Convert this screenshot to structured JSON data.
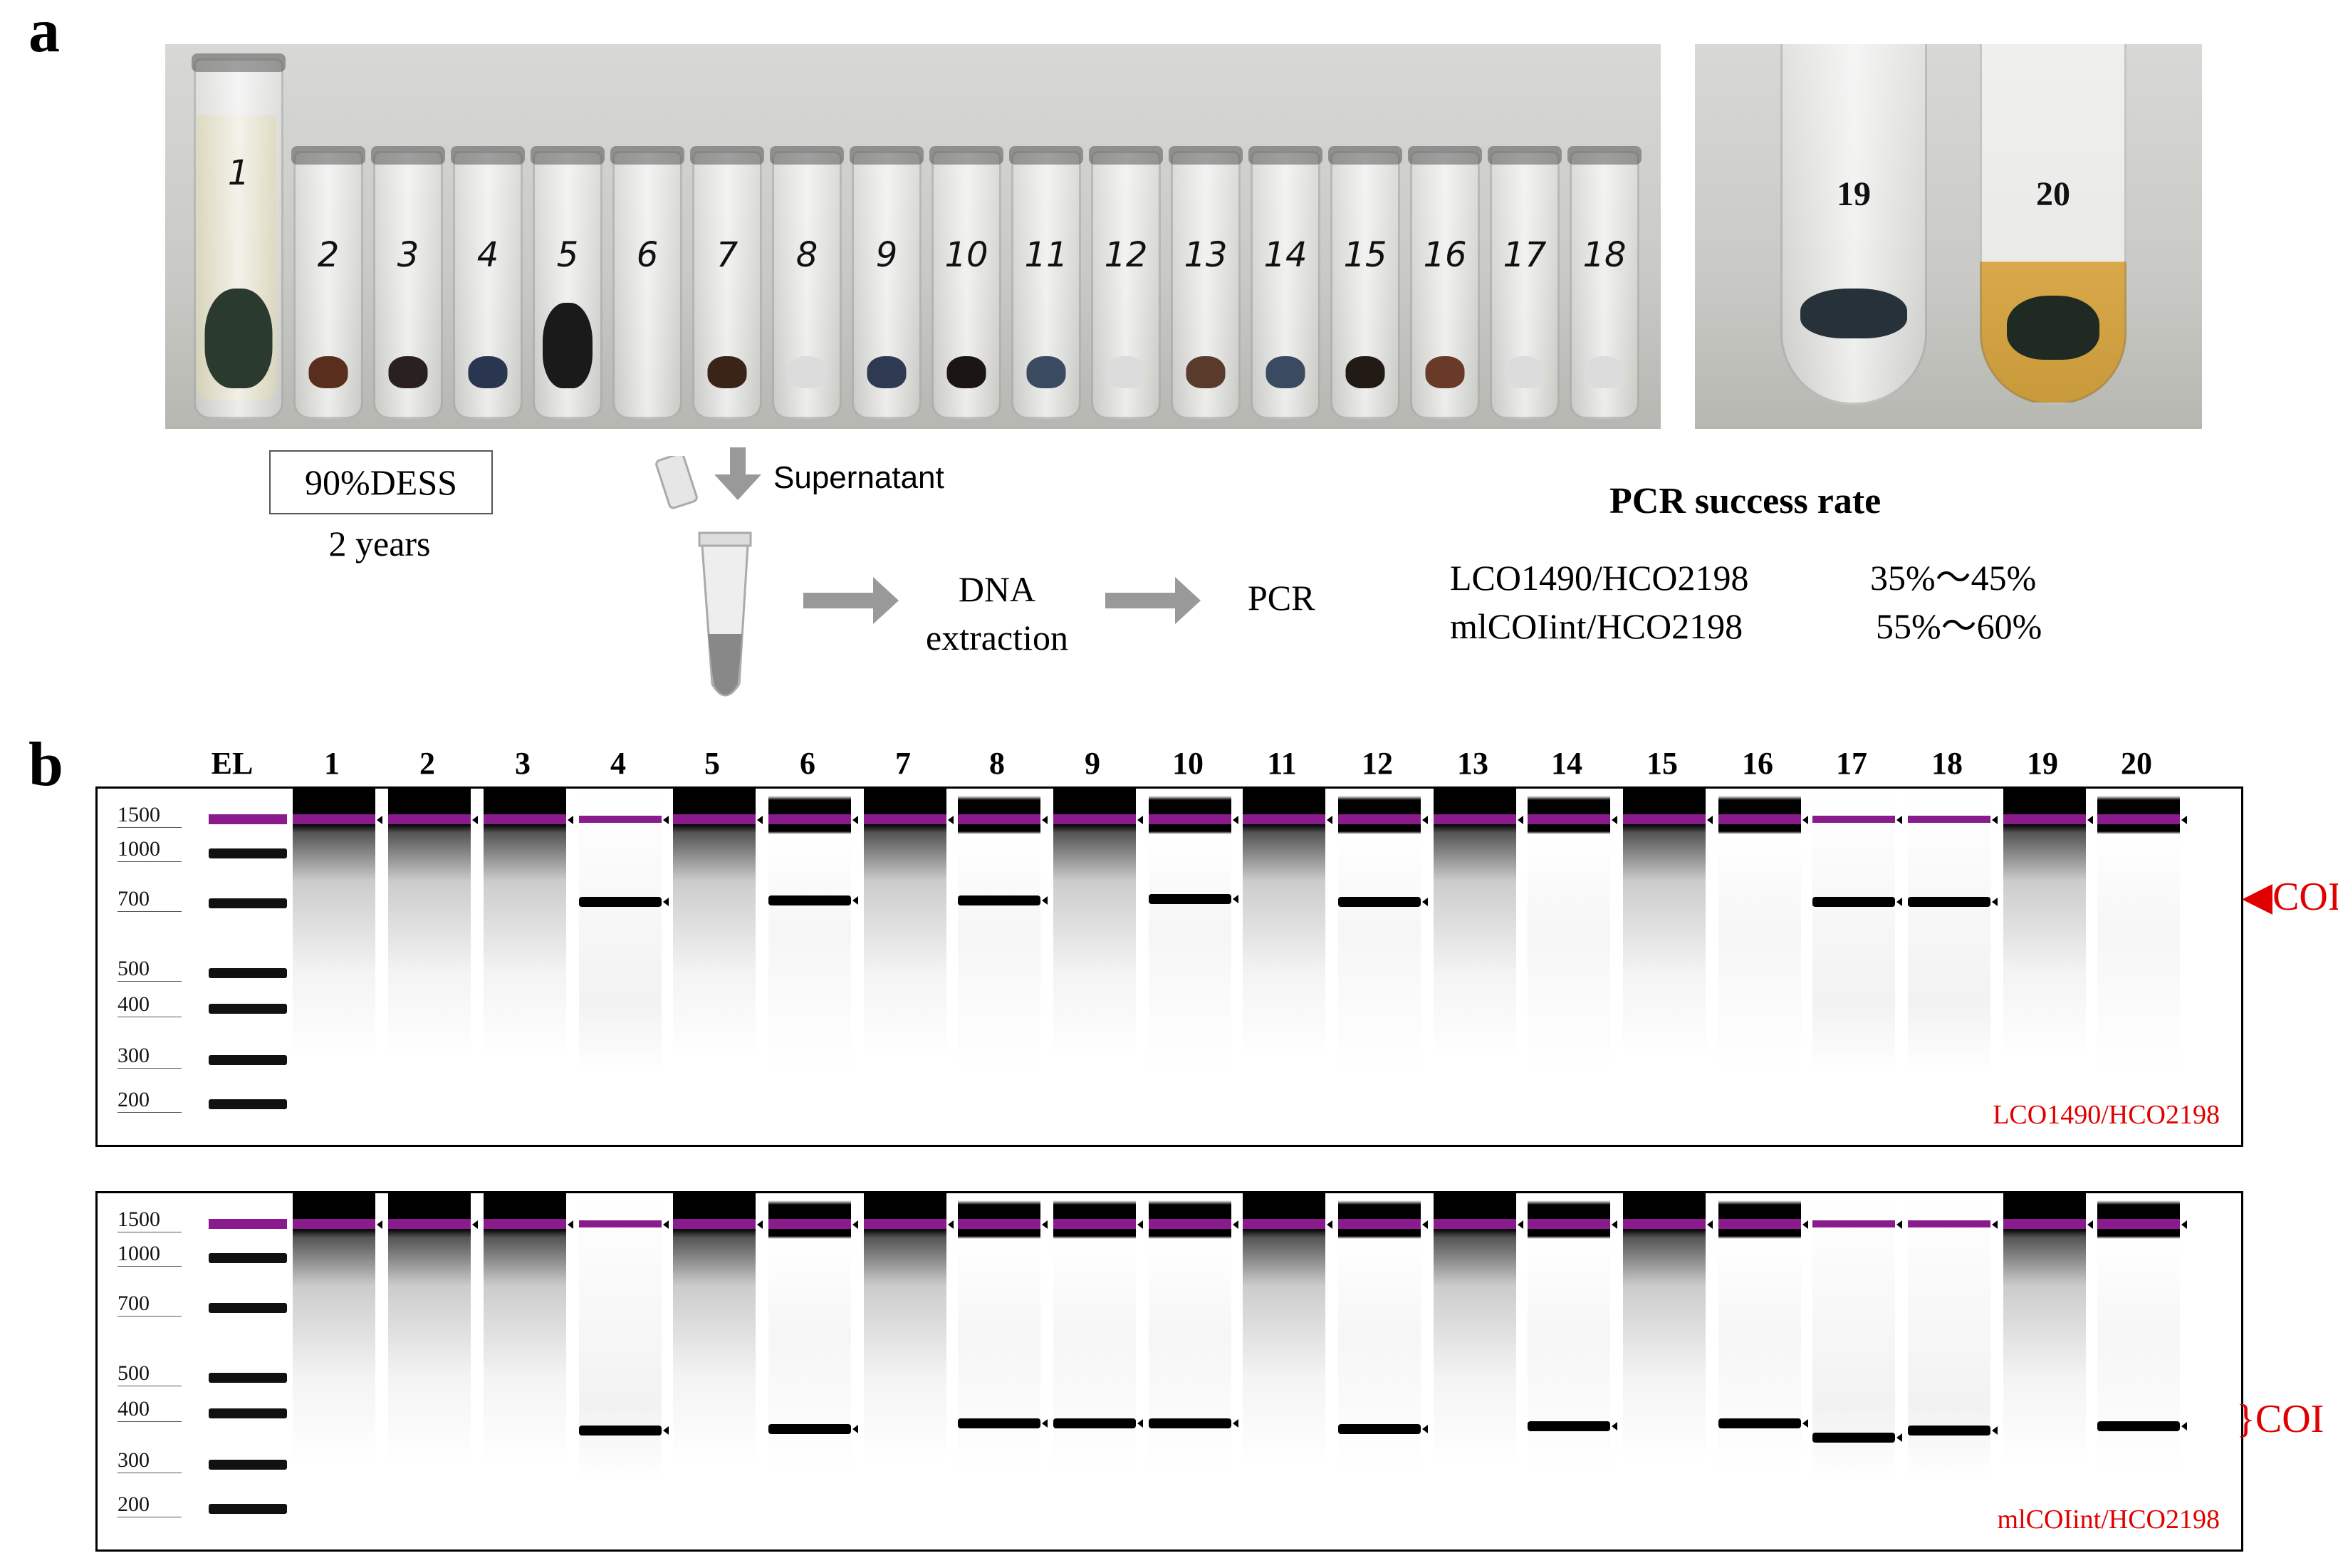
{
  "panel_a": {
    "letter": "a",
    "tube_labels": [
      "1",
      "2",
      "3",
      "4",
      "5",
      "6",
      "7",
      "8",
      "9",
      "10",
      "11",
      "12",
      "13",
      "14",
      "15",
      "16",
      "17",
      "18"
    ],
    "tube_labels_right": [
      "19",
      "20"
    ],
    "dess_box": "90%DESS",
    "duration": "2 years",
    "supernatant": "Supernatant",
    "dna_line1": "DNA",
    "dna_line2": "extraction",
    "pcr": "PCR",
    "pcr_title": "PCR success rate",
    "rate_rows": [
      {
        "primer": "LCO1490/HCO2198",
        "rate": "35%～45%"
      },
      {
        "primer": "mlCOIint/HCO2198",
        "rate": "55%～60%"
      }
    ]
  },
  "panel_b": {
    "letter": "b",
    "lane_labels": [
      "EL",
      "1",
      "2",
      "3",
      "4",
      "5",
      "6",
      "7",
      "8",
      "9",
      "10",
      "11",
      "12",
      "13",
      "14",
      "15",
      "16",
      "17",
      "18",
      "19",
      "20"
    ],
    "gel1": {
      "markers": [
        "1500",
        "1000",
        "700",
        "500",
        "400",
        "300",
        "200"
      ],
      "primer_label": "LCO1490/HCO2198",
      "coi_label": "COI"
    },
    "gel2": {
      "markers": [
        "1500",
        "1000",
        "700",
        "500",
        "400",
        "300",
        "200"
      ],
      "primer_label": "mlCOIint/HCO2198",
      "coi_label": "COI"
    }
  }
}
